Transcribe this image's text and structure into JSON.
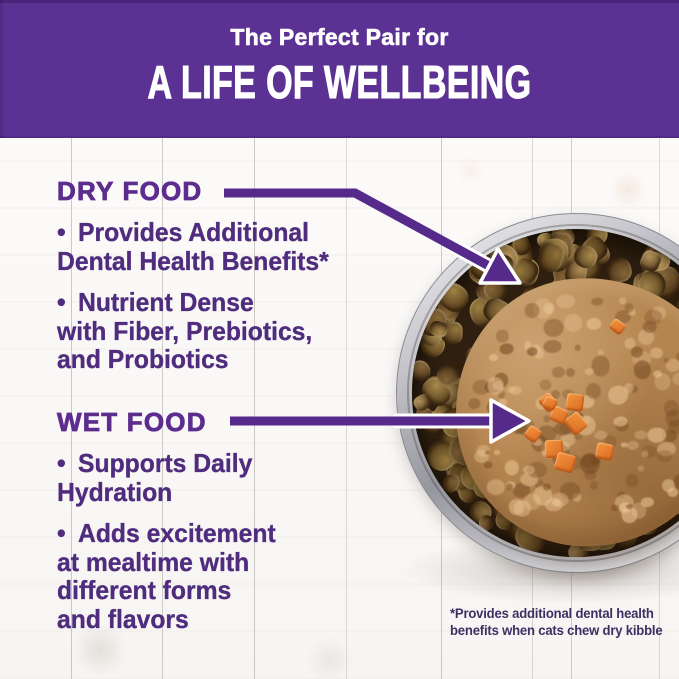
{
  "header": {
    "subtitle": "The Perfect Pair for",
    "title": "A LIFE OF WELLBEING"
  },
  "bullet_char": "•",
  "sections": [
    {
      "heading": "DRY FOOD",
      "bullets": [
        {
          "lines": [
            "Provides Additional",
            "Dental Health Benefits*"
          ]
        },
        {
          "lines": [
            "Nutrient Dense",
            "with Fiber, Prebiotics,",
            "and Probiotics"
          ]
        }
      ]
    },
    {
      "heading": "WET FOOD",
      "bullets": [
        {
          "lines": [
            "Supports Daily",
            "Hydration"
          ]
        },
        {
          "lines": [
            "Adds excitement",
            "at mealtime with",
            "different forms",
            "and flavors"
          ]
        }
      ]
    }
  ],
  "footnote": {
    "lines": [
      "*Provides additional dental health",
      "benefits when cats chew dry kibble"
    ]
  },
  "icons": {
    "dry_food_arrow": "arrow-bent-down-right",
    "wet_food_arrow": "arrow-right"
  },
  "colors": {
    "banner_bg": "#5c3194",
    "banner_text": "#ffffff",
    "heading": "#5c2d8e",
    "body_text": "#4f2c7e",
    "arrow": "#552a8a",
    "footnote_text": "#3f2f63",
    "kibble_brown": "#9a7a45",
    "wet_food": "#b5854f",
    "carrot": "#e87f2e",
    "bowl_metal": "#c2c2c8"
  }
}
